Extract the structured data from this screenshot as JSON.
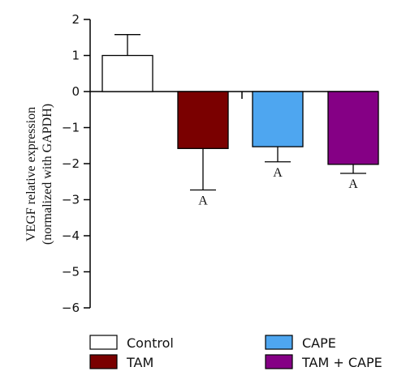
{
  "chart_data": {
    "type": "bar",
    "categories": [
      "Control",
      "TAM",
      "CAPE",
      "TAM + CAPE"
    ],
    "values": [
      1.0,
      -1.58,
      -1.53,
      -2.02
    ],
    "error_bars": [
      0.58,
      1.15,
      0.42,
      0.25
    ],
    "error_direction": [
      "up",
      "down",
      "down",
      "down"
    ],
    "significance": [
      "",
      "A",
      "A",
      "A"
    ],
    "colors": [
      "#ffffff",
      "#7a0000",
      "#4ea6f0",
      "#850085"
    ],
    "ylabel_line1": "VEGF relative expression",
    "ylabel_line2": "(normalized with GAPDH)",
    "ylim": [
      -6,
      2
    ],
    "yticks": [
      "2",
      "1",
      "0",
      "−1",
      "−2",
      "−3",
      "−4",
      "−5",
      "−6"
    ],
    "legend": [
      "Control",
      "TAM",
      "CAPE",
      "TAM + CAPE"
    ],
    "legend_position": "bottom",
    "grid": false
  }
}
